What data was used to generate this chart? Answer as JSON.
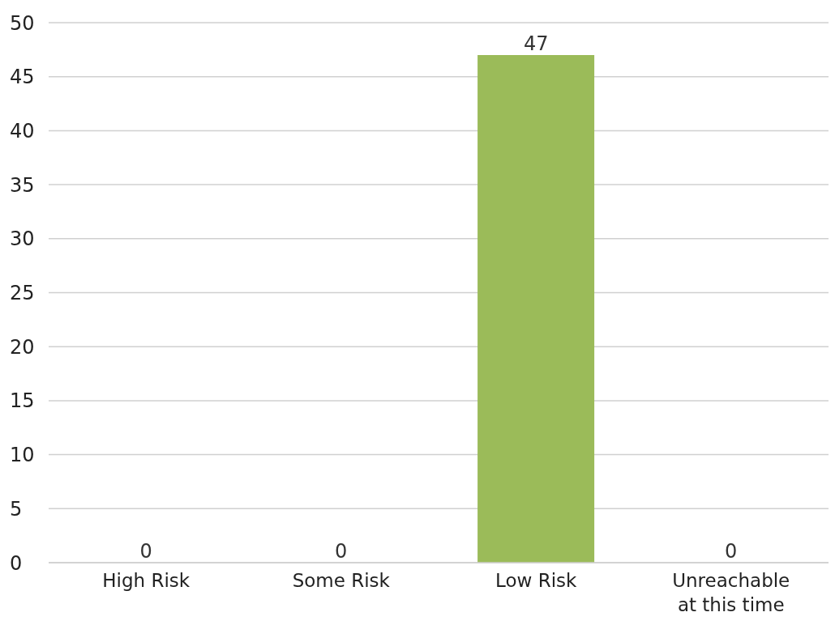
{
  "chart_data": {
    "type": "bar",
    "categories": [
      "High Risk",
      "Some Risk",
      "Low Risk",
      "Unreachable at this time"
    ],
    "values": [
      0,
      0,
      47,
      0
    ],
    "color": "#9bbb59",
    "ylim": [
      0,
      50
    ],
    "yticks": [
      0,
      5,
      10,
      15,
      20,
      25,
      30,
      35,
      40,
      45,
      50
    ],
    "grid": "y",
    "data_labels": true
  }
}
